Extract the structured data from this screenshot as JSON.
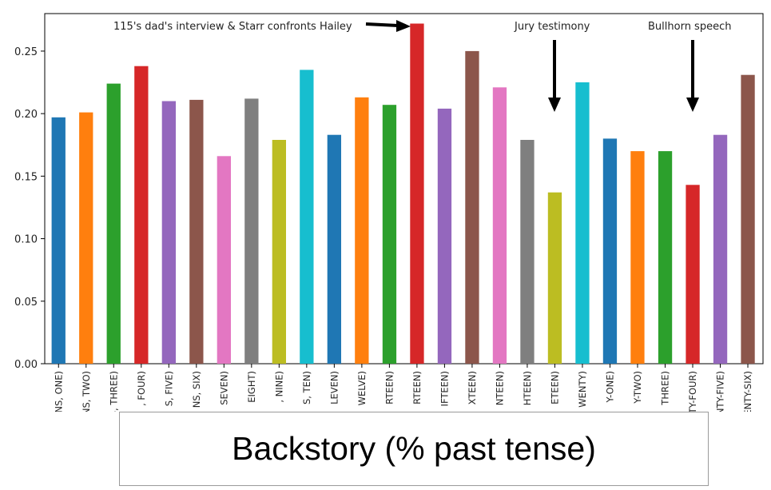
{
  "chart_data": {
    "type": "bar",
    "categories": [
      "HAPPENS, ONE)",
      "HAPPENS, TWO)",
      "PPENS, THREE)",
      ", FOUR)",
      "S, FIVE)",
      "NS, SIX)",
      "SEVEN)",
      "EIGHT)",
      ", NINE)",
      "S, TEN)",
      "LEVEN)",
      "WELVE)",
      "RTEEN)",
      "RTEEN)",
      "IFTEEN)",
      "XTEEN)",
      "NTEEN)",
      "HTEEN)",
      "ETEEN)",
      "WENTY)",
      "Y-ONE)",
      "Y-TWO)",
      "THREE)",
      "TWENTY-FOUR)",
      ", TWENTY-FIVE)",
      "N, TWENTY-SIX)"
    ],
    "values": [
      0.197,
      0.201,
      0.224,
      0.238,
      0.21,
      0.211,
      0.166,
      0.212,
      0.179,
      0.235,
      0.183,
      0.213,
      0.207,
      0.272,
      0.204,
      0.25,
      0.221,
      0.179,
      0.137,
      0.225,
      0.18,
      0.17,
      0.17,
      0.143,
      0.183,
      0.231
    ],
    "colors": [
      "#1f77b4",
      "#ff7f0e",
      "#2ca02c",
      "#d62728",
      "#9467bd",
      "#8c564b",
      "#e377c2",
      "#7f7f7f",
      "#bcbd22",
      "#17becf"
    ],
    "ylim": [
      0,
      0.28
    ],
    "yticks": [
      "0.00",
      "0.05",
      "0.10",
      "0.15",
      "0.20",
      "0.25"
    ],
    "grid": false,
    "annotations": [
      {
        "text": "115's dad's interview & Starr confronts Hailey",
        "bar_index": 13,
        "arrow": "right"
      },
      {
        "text": "Jury testimony",
        "bar_index": 18,
        "arrow": "down"
      },
      {
        "text": "Bullhorn speech",
        "bar_index": 23,
        "arrow": "down"
      }
    ]
  },
  "caption": "Backstory (% past tense)"
}
